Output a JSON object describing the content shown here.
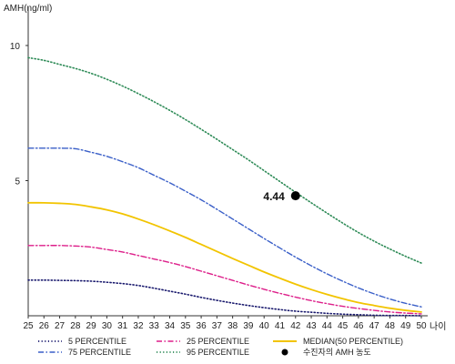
{
  "chart_data": {
    "type": "line",
    "ylabel": "AMH(ng/ml)",
    "xlabel": "나이",
    "ylim": [
      0,
      11
    ],
    "xlim": [
      25,
      50
    ],
    "x_ticks": [
      25,
      26,
      27,
      28,
      29,
      30,
      31,
      32,
      33,
      34,
      35,
      36,
      37,
      38,
      39,
      40,
      41,
      42,
      43,
      44,
      45,
      46,
      47,
      48,
      49,
      50
    ],
    "y_ticks": [
      5,
      10
    ],
    "series": [
      {
        "name": "5 PERCENTILE",
        "color": "#1a1a6e",
        "dash": "dotted",
        "x": [
          25,
          26,
          27,
          28,
          29,
          30,
          31,
          32,
          33,
          34,
          35,
          36,
          37,
          38,
          39,
          40,
          41,
          42,
          43,
          44,
          45,
          46,
          47,
          48,
          49,
          50
        ],
        "values": [
          1.32,
          1.32,
          1.31,
          1.3,
          1.28,
          1.24,
          1.19,
          1.12,
          1.02,
          0.91,
          0.8,
          0.68,
          0.57,
          0.47,
          0.38,
          0.3,
          0.23,
          0.17,
          0.13,
          0.09,
          0.06,
          0.04,
          0.02,
          0.01,
          0.01,
          0.0
        ]
      },
      {
        "name": "25 PERCENTILE",
        "color": "#dd1f8a",
        "dash": "dashdot",
        "x": [
          25,
          26,
          27,
          28,
          29,
          30,
          31,
          32,
          33,
          34,
          35,
          36,
          37,
          38,
          39,
          40,
          41,
          42,
          43,
          44,
          45,
          46,
          47,
          48,
          49,
          50
        ],
        "values": [
          2.6,
          2.6,
          2.6,
          2.58,
          2.54,
          2.45,
          2.36,
          2.23,
          2.1,
          1.97,
          1.82,
          1.65,
          1.48,
          1.31,
          1.14,
          0.98,
          0.83,
          0.69,
          0.56,
          0.45,
          0.35,
          0.27,
          0.2,
          0.14,
          0.1,
          0.07
        ]
      },
      {
        "name": "MEDIAN(50 PERCENTILE)",
        "color": "#f2c400",
        "dash": "solid",
        "x": [
          25,
          26,
          27,
          28,
          29,
          30,
          31,
          32,
          33,
          34,
          35,
          36,
          37,
          38,
          39,
          40,
          41,
          42,
          43,
          44,
          45,
          46,
          47,
          48,
          49,
          50
        ],
        "values": [
          4.18,
          4.18,
          4.16,
          4.12,
          4.03,
          3.92,
          3.77,
          3.58,
          3.37,
          3.14,
          2.9,
          2.64,
          2.38,
          2.12,
          1.87,
          1.62,
          1.39,
          1.17,
          0.97,
          0.79,
          0.63,
          0.49,
          0.38,
          0.28,
          0.2,
          0.14
        ]
      },
      {
        "name": "75 PERCENTILE",
        "color": "#3a5fc8",
        "dash": "dashdot",
        "x": [
          25,
          26,
          27,
          28,
          29,
          30,
          31,
          32,
          33,
          34,
          35,
          36,
          37,
          38,
          39,
          40,
          41,
          42,
          43,
          44,
          45,
          46,
          47,
          48,
          49,
          50
        ],
        "values": [
          6.2,
          6.2,
          6.2,
          6.18,
          6.05,
          5.9,
          5.7,
          5.48,
          5.2,
          4.92,
          4.61,
          4.29,
          3.94,
          3.58,
          3.22,
          2.86,
          2.51,
          2.17,
          1.85,
          1.55,
          1.28,
          1.03,
          0.81,
          0.62,
          0.46,
          0.33
        ]
      },
      {
        "name": "95 PERCENTILE",
        "color": "#2e8b57",
        "dash": "dotted",
        "x": [
          25,
          26,
          27,
          28,
          29,
          30,
          31,
          32,
          33,
          34,
          35,
          36,
          37,
          38,
          39,
          40,
          41,
          42,
          43,
          44,
          45,
          46,
          47,
          48,
          49,
          50
        ],
        "values": [
          9.55,
          9.45,
          9.3,
          9.15,
          8.97,
          8.75,
          8.5,
          8.22,
          7.92,
          7.6,
          7.26,
          6.9,
          6.53,
          6.15,
          5.77,
          5.37,
          4.97,
          4.57,
          4.18,
          3.8,
          3.43,
          3.08,
          2.76,
          2.47,
          2.2,
          1.95
        ]
      }
    ],
    "point": {
      "name": "수진자의 AMH 농도",
      "x": 42,
      "y": 4.44,
      "label": "4.44",
      "color": "#000000"
    },
    "legend": {
      "position": "bottom",
      "order": [
        "5 PERCENTILE",
        "25 PERCENTILE",
        "MEDIAN(50 PERCENTILE)",
        "75 PERCENTILE",
        "95 PERCENTILE",
        "수진자의 AMH 농도"
      ]
    }
  }
}
